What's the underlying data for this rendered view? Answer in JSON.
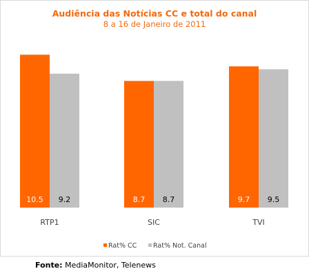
{
  "chart_data": {
    "type": "bar",
    "title": "Audiência das Notícias CC e total do canal",
    "subtitle": "8 a 16 de Janeiro de 2011",
    "categories": [
      "RTP1",
      "SIC",
      "TVI"
    ],
    "series": [
      {
        "name": "Rat% CC",
        "values": [
          10.5,
          8.7,
          9.7
        ],
        "labels": [
          "10.5",
          "8.7",
          "9.7"
        ],
        "color": "#ff6600",
        "label_color": "#ffffff"
      },
      {
        "name": "Rat% Not. Canal",
        "values": [
          9.2,
          8.7,
          9.5
        ],
        "labels": [
          "9.2",
          "8.7",
          "9.5"
        ],
        "color": "#c0c0c0",
        "label_color": "#000000"
      }
    ],
    "ylim": [
      0,
      11.7
    ],
    "grid": false,
    "legend": "bottom"
  },
  "source": {
    "label": "Fonte:",
    "text": "MediaMonitor, Telenews"
  }
}
